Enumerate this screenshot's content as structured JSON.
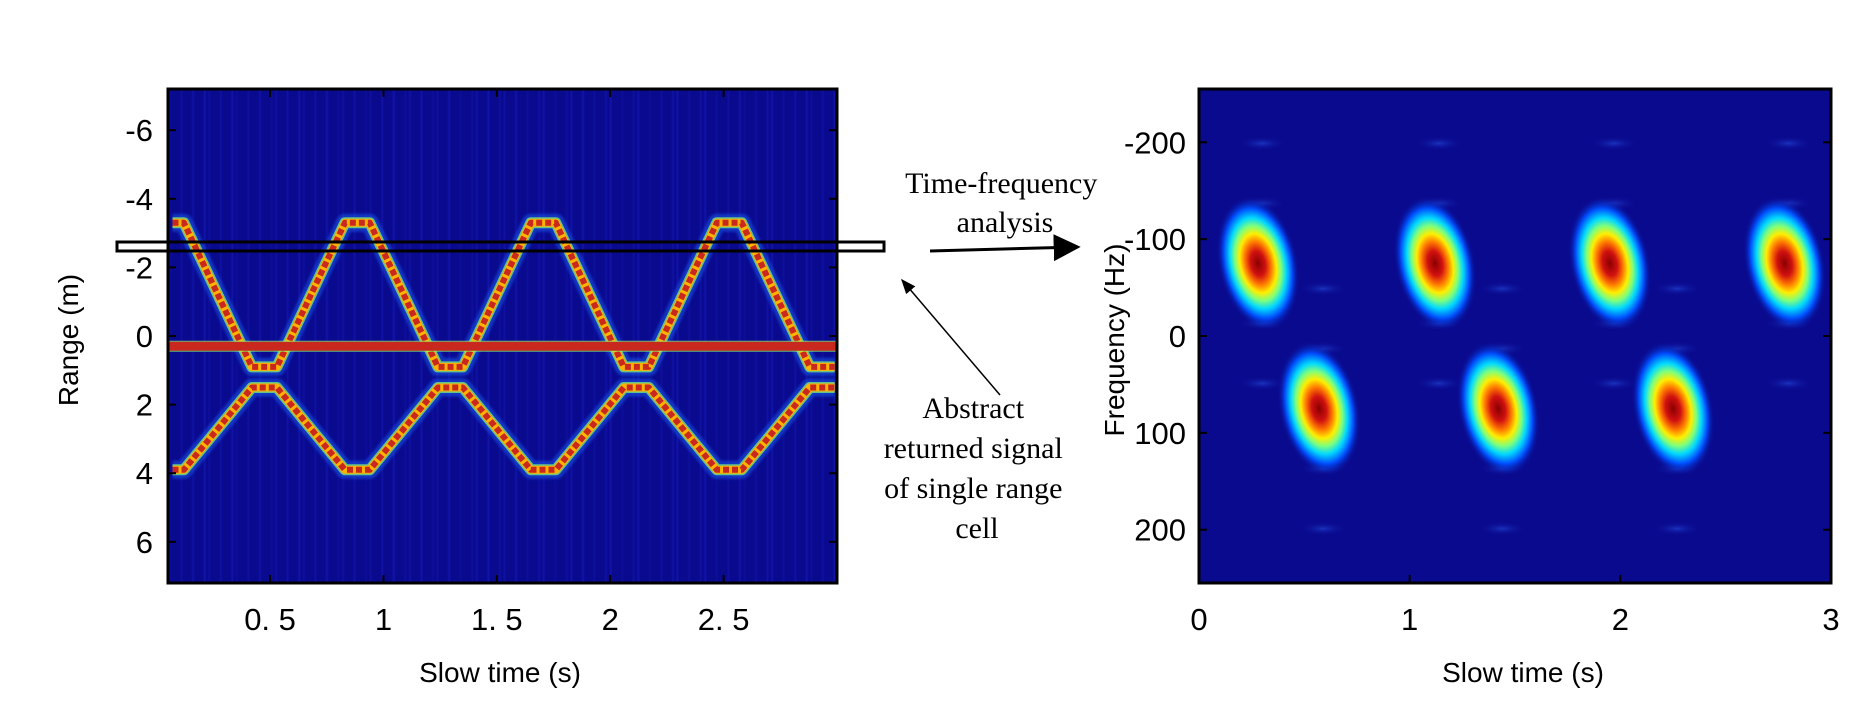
{
  "chart_data": [
    {
      "type": "heatmap",
      "xlabel": "Slow time (s)",
      "ylabel": "Range (m)",
      "xlim": [
        0.05,
        3.0
      ],
      "ylim": [
        7.2,
        -7.2
      ],
      "x_ticks": [
        0.5,
        1,
        1.5,
        2,
        2.5
      ],
      "x_tick_labels": [
        "0. 5",
        "1",
        "1. 5",
        "2",
        "2. 5"
      ],
      "y_ticks": [
        -6,
        -4,
        -2,
        0,
        2,
        4,
        6
      ],
      "y_tick_labels": [
        "-6",
        "-4",
        "-2",
        "0",
        "2",
        "4",
        "6"
      ],
      "colormap": "jet",
      "traces": [
        {
          "kind": "triangle",
          "top_points": [
            [
              0.07,
              -3.3
            ],
            [
              0.12,
              -3.3
            ],
            [
              0.42,
              0.9
            ],
            [
              0.53,
              0.9
            ],
            [
              0.83,
              -3.3
            ],
            [
              0.94,
              -3.3
            ],
            [
              1.24,
              0.9
            ],
            [
              1.35,
              0.9
            ],
            [
              1.65,
              -3.3
            ],
            [
              1.76,
              -3.3
            ],
            [
              2.06,
              0.9
            ],
            [
              2.17,
              0.9
            ],
            [
              2.47,
              -3.3
            ],
            [
              2.58,
              -3.3
            ],
            [
              2.88,
              0.9
            ],
            [
              2.99,
              0.9
            ]
          ]
        },
        {
          "kind": "flat",
          "points": [
            [
              0.05,
              0.3
            ],
            [
              3.0,
              0.3
            ]
          ]
        },
        {
          "kind": "triangle",
          "top_points": [
            [
              0.07,
              3.9
            ],
            [
              0.12,
              3.9
            ],
            [
              0.42,
              1.5
            ],
            [
              0.53,
              1.5
            ],
            [
              0.83,
              3.9
            ],
            [
              0.94,
              3.9
            ],
            [
              1.24,
              1.5
            ],
            [
              1.35,
              1.5
            ],
            [
              1.65,
              3.9
            ],
            [
              1.76,
              3.9
            ],
            [
              2.06,
              1.5
            ],
            [
              2.17,
              1.5
            ],
            [
              2.47,
              3.9
            ],
            [
              2.58,
              3.9
            ],
            [
              2.88,
              1.5
            ],
            [
              2.99,
              1.5
            ]
          ]
        }
      ],
      "highlighted_range_cell": [
        -2.4,
        -2.6
      ]
    },
    {
      "type": "heatmap",
      "xlabel": "Slow time (s)",
      "ylabel": "Frequency (Hz)",
      "xlim": [
        0,
        3
      ],
      "ylim": [
        255,
        -255
      ],
      "x_ticks": [
        0,
        1,
        2,
        3
      ],
      "x_tick_labels": [
        "0",
        "1",
        "2",
        "3"
      ],
      "y_ticks": [
        -200,
        -100,
        0,
        100,
        200
      ],
      "y_tick_labels": [
        "-200",
        "-100",
        "0",
        "100",
        "200"
      ],
      "colormap": "jet",
      "blobs": [
        {
          "t": 0.28,
          "f": -75
        },
        {
          "t": 1.12,
          "f": -75
        },
        {
          "t": 1.95,
          "f": -75
        },
        {
          "t": 2.78,
          "f": -75
        },
        {
          "t": 0.57,
          "f": 75
        },
        {
          "t": 1.42,
          "f": 75
        },
        {
          "t": 2.25,
          "f": 75
        }
      ]
    }
  ],
  "annotations": {
    "tf_analysis": [
      "Time-frequency",
      "analysis"
    ],
    "abstract_signal": [
      "Abstract",
      "returned signal",
      "of single range",
      "cell"
    ]
  },
  "colors": {
    "background": "#0a0a8f",
    "hot": "#c8281e",
    "frame": "#000000"
  }
}
